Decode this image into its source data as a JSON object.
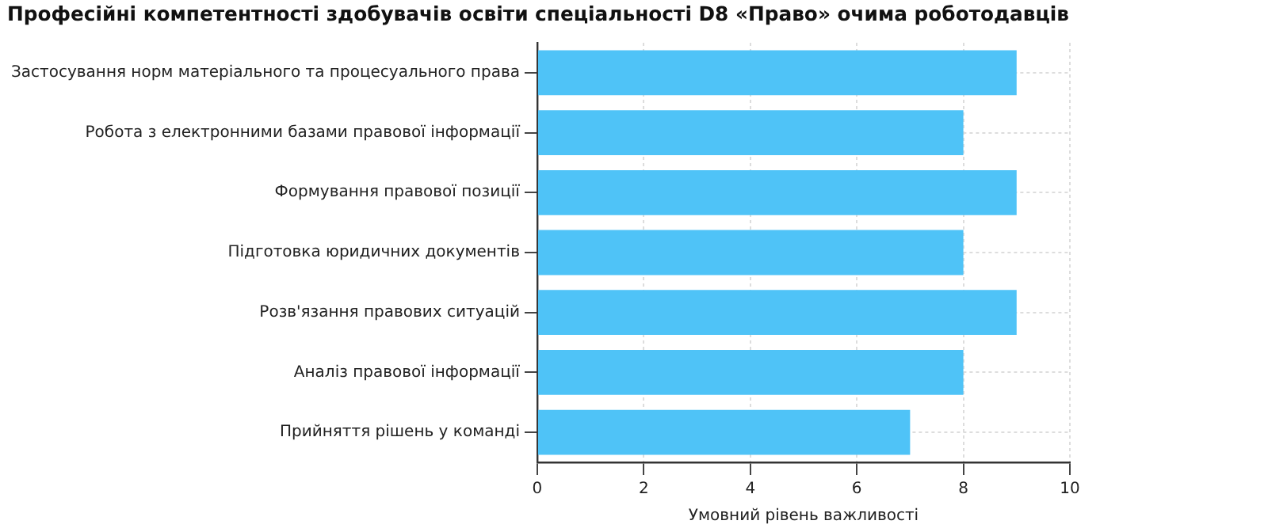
{
  "chart_data": {
    "type": "bar",
    "orientation": "horizontal",
    "title": "Професійні компетентності здобувачів освіти спеціальності D8 «Право» очима роботодавців",
    "xlabel": "Умовний рівень важливості",
    "categories": [
      "Застосування норм матеріального та процесуального права",
      "Робота з електронними базами правової інформації",
      "Формування правової позиції",
      "Підготовка юридичних документів",
      "Розв'язання правових ситуацій",
      "Аналіз правової інформації",
      "Прийняття рішень у команді"
    ],
    "values": [
      9,
      8,
      9,
      8,
      9,
      8,
      7
    ],
    "color": "#4fc3f7",
    "xlim": [
      0,
      10
    ],
    "xticks": [
      0,
      2,
      4,
      6,
      8,
      10
    ],
    "grid": true
  }
}
